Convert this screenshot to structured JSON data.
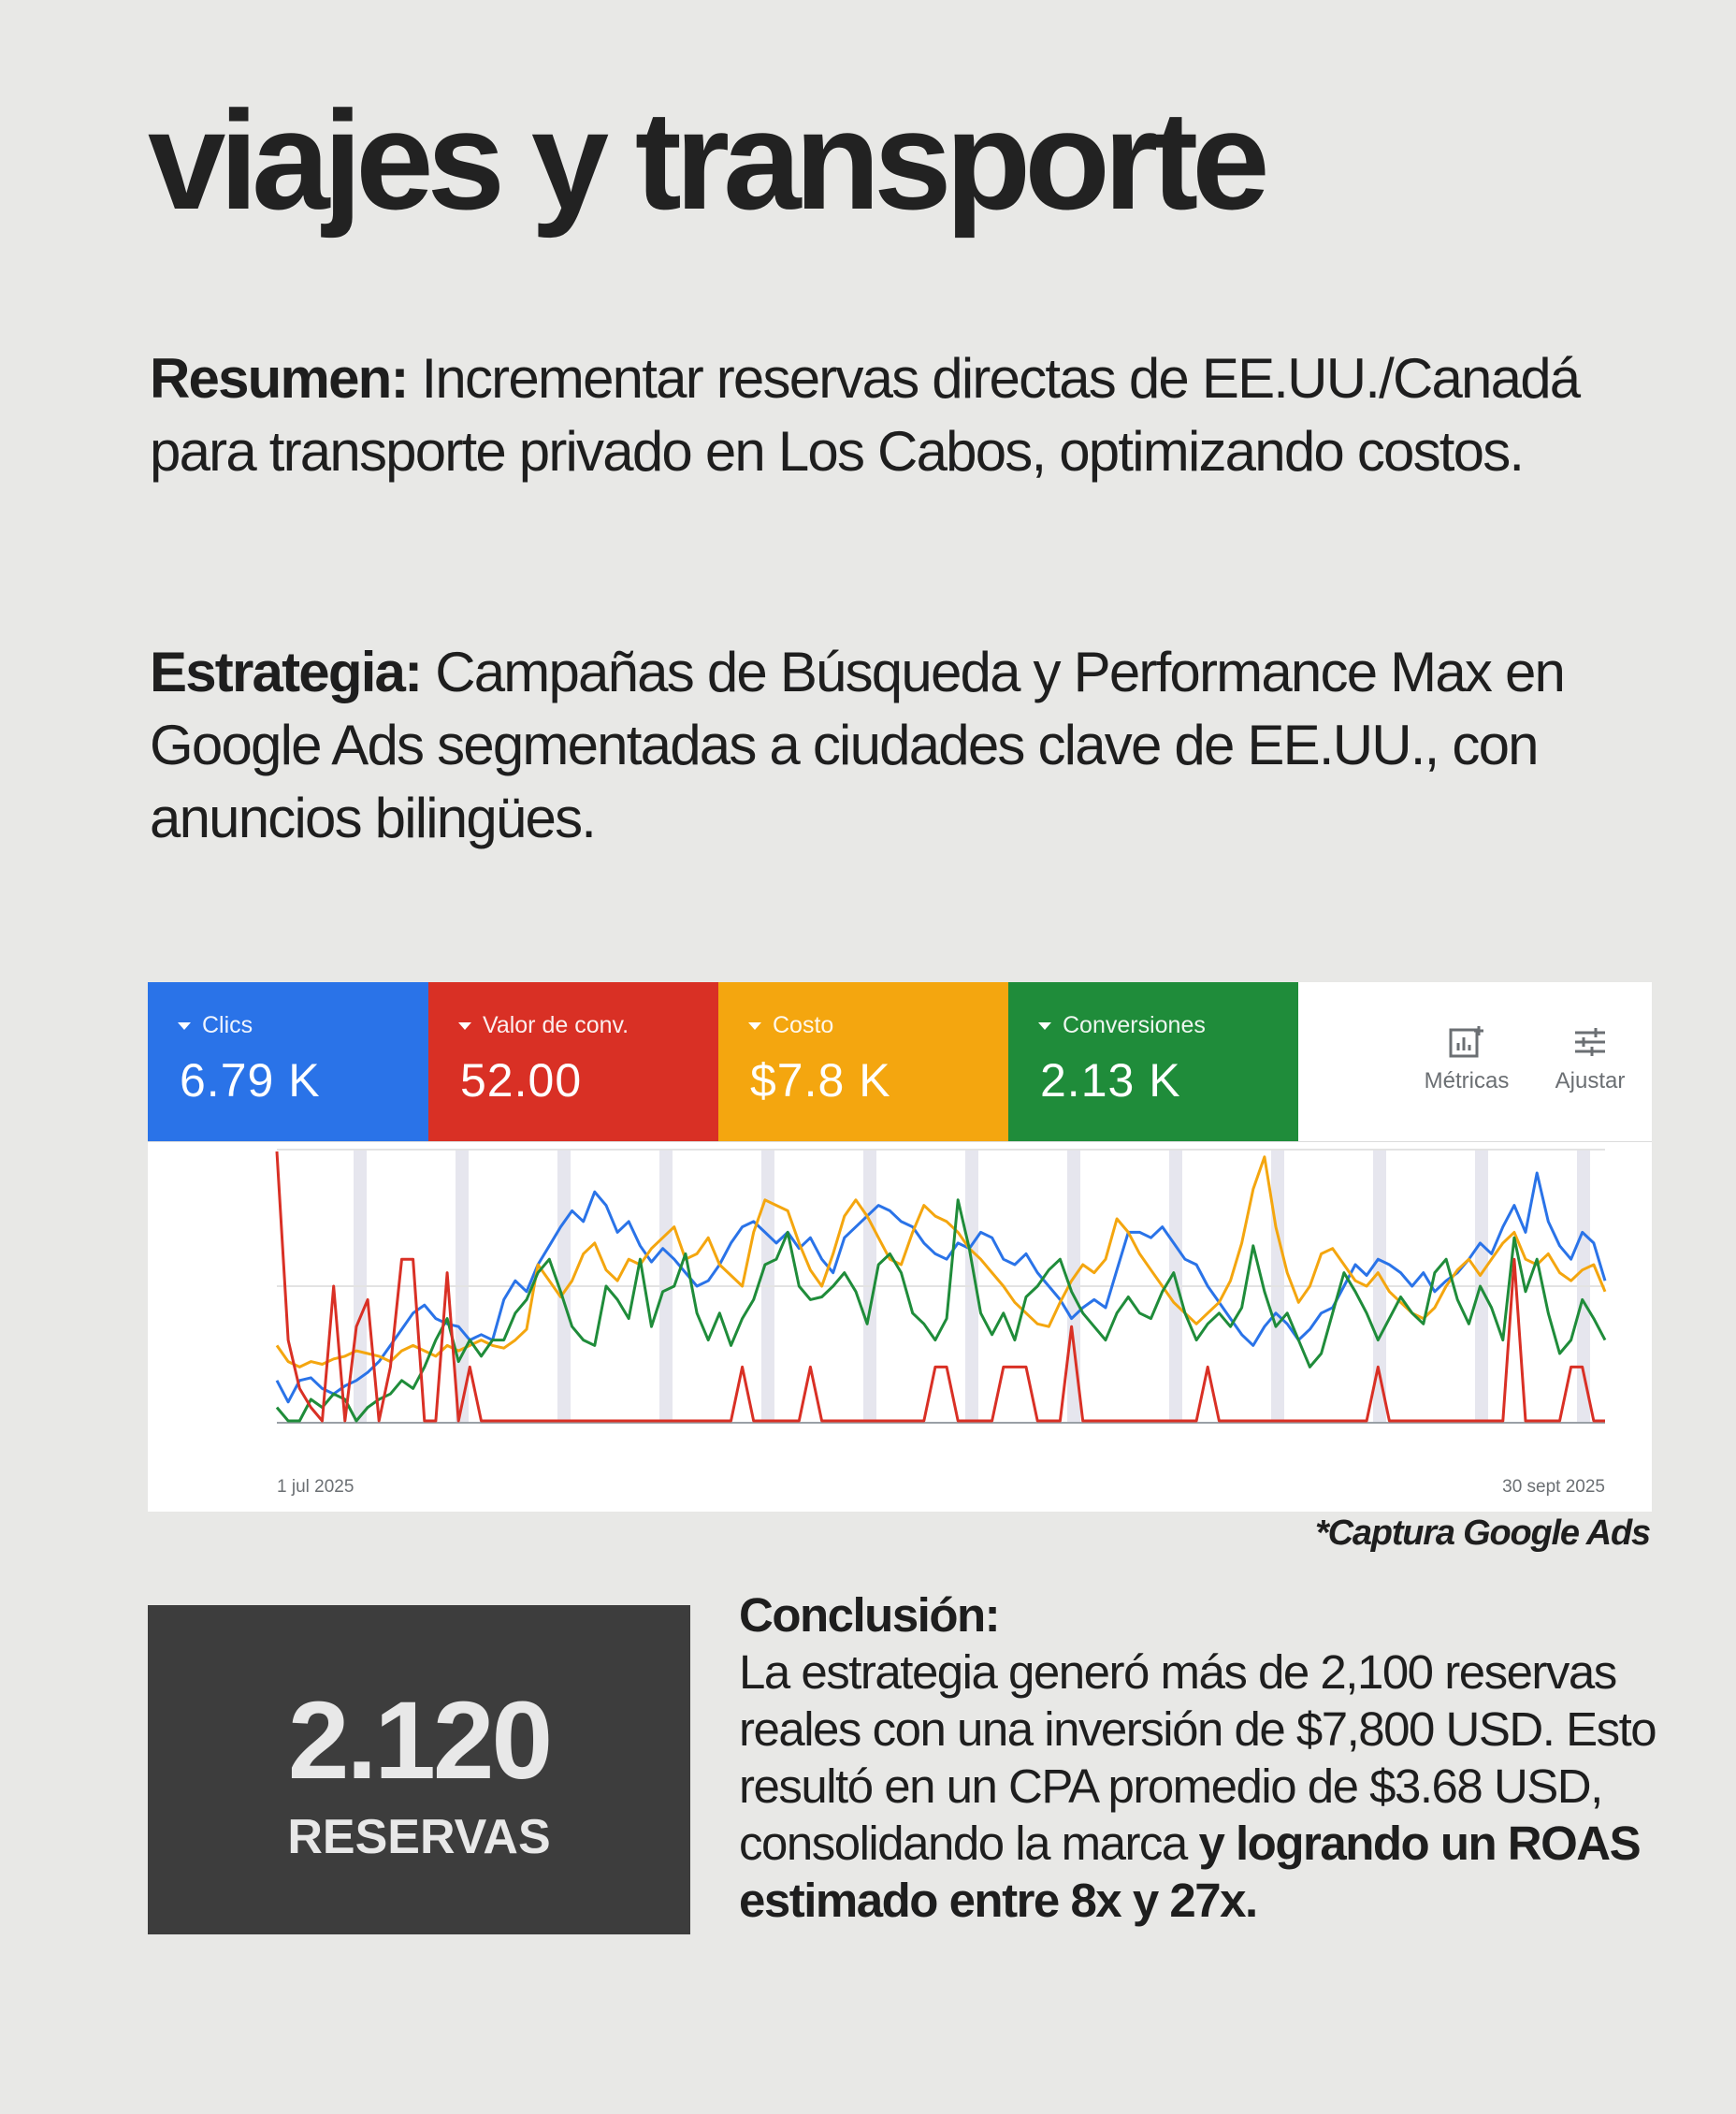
{
  "title": "viajes y transporte",
  "resumen": {
    "label": "Resumen:",
    "text": "Incrementar reservas directas de EE.UU./Canadá para transporte privado en Los Cabos, optimizando costos."
  },
  "estrategia": {
    "label": "Estrategia:",
    "text": "Campañas de Búsqueda y Performance Max en Google Ads segmentadas a ciudades clave de EE.UU., con anuncios bilingües."
  },
  "ads_panel": {
    "metrics": [
      {
        "name": "Clics",
        "value": "6.79 K",
        "color": "#2a73e8"
      },
      {
        "name": "Valor de conv.",
        "value": "52.00",
        "color": "#d93025"
      },
      {
        "name": "Costo",
        "value": "$7.8 K",
        "color": "#f4a60f"
      },
      {
        "name": "Conversiones",
        "value": "2.13 K",
        "color": "#1f8c3a"
      }
    ],
    "tools": [
      {
        "label": "Métricas",
        "icon": "metrics-add-icon"
      },
      {
        "label": "Ajustar",
        "icon": "tune-sliders-icon"
      }
    ]
  },
  "chart_data": {
    "type": "line",
    "x_start_label": "1 jul 2025",
    "x_end_label": "30 sept 2025",
    "grid": "horizontal",
    "series": [
      {
        "name": "Clics",
        "color": "#2a73e8",
        "values": [
          0.15,
          0.07,
          0.15,
          0.16,
          0.12,
          0.1,
          0.13,
          0.15,
          0.18,
          0.22,
          0.28,
          0.34,
          0.4,
          0.43,
          0.38,
          0.36,
          0.35,
          0.3,
          0.32,
          0.3,
          0.45,
          0.52,
          0.48,
          0.58,
          0.65,
          0.72,
          0.78,
          0.74,
          0.85,
          0.8,
          0.7,
          0.74,
          0.65,
          0.59,
          0.64,
          0.6,
          0.55,
          0.5,
          0.52,
          0.58,
          0.66,
          0.72,
          0.74,
          0.7,
          0.66,
          0.7,
          0.64,
          0.68,
          0.6,
          0.55,
          0.68,
          0.72,
          0.76,
          0.8,
          0.78,
          0.74,
          0.72,
          0.66,
          0.62,
          0.6,
          0.66,
          0.64,
          0.7,
          0.68,
          0.6,
          0.58,
          0.62,
          0.55,
          0.5,
          0.45,
          0.38,
          0.42,
          0.45,
          0.42,
          0.56,
          0.7,
          0.7,
          0.68,
          0.72,
          0.66,
          0.6,
          0.58,
          0.5,
          0.44,
          0.38,
          0.32,
          0.28,
          0.35,
          0.4,
          0.36,
          0.3,
          0.34,
          0.4,
          0.42,
          0.5,
          0.58,
          0.54,
          0.6,
          0.58,
          0.55,
          0.5,
          0.55,
          0.48,
          0.52,
          0.55,
          0.6,
          0.66,
          0.62,
          0.72,
          0.8,
          0.7,
          0.92,
          0.74,
          0.65,
          0.6,
          0.7,
          0.66,
          0.52
        ]
      },
      {
        "name": "Valor de conv.",
        "color": "#d93025",
        "values": [
          1.0,
          0.3,
          0.12,
          0.05,
          0.0,
          0.5,
          0.0,
          0.35,
          0.45,
          0.0,
          0.2,
          0.6,
          0.6,
          0.0,
          0.0,
          0.55,
          0.0,
          0.2,
          0.0,
          0.0,
          0.0,
          0.0,
          0.0,
          0.0,
          0.0,
          0.0,
          0.0,
          0.0,
          0.0,
          0.0,
          0.0,
          0.0,
          0.0,
          0.0,
          0.0,
          0.0,
          0.0,
          0.0,
          0.0,
          0.0,
          0.0,
          0.2,
          0.0,
          0.0,
          0.0,
          0.0,
          0.0,
          0.2,
          0.0,
          0.0,
          0.0,
          0.0,
          0.0,
          0.0,
          0.0,
          0.0,
          0.0,
          0.0,
          0.2,
          0.2,
          0.0,
          0.0,
          0.0,
          0.0,
          0.2,
          0.2,
          0.2,
          0.0,
          0.0,
          0.0,
          0.35,
          0.0,
          0.0,
          0.0,
          0.0,
          0.0,
          0.0,
          0.0,
          0.0,
          0.0,
          0.0,
          0.0,
          0.2,
          0.0,
          0.0,
          0.0,
          0.0,
          0.0,
          0.0,
          0.0,
          0.0,
          0.0,
          0.0,
          0.0,
          0.0,
          0.0,
          0.0,
          0.2,
          0.0,
          0.0,
          0.0,
          0.0,
          0.0,
          0.0,
          0.0,
          0.0,
          0.0,
          0.0,
          0.0,
          0.6,
          0.0,
          0.0,
          0.0,
          0.0,
          0.2,
          0.2,
          0.0,
          0.0
        ]
      },
      {
        "name": "Costo",
        "color": "#f4a60f",
        "values": [
          0.28,
          0.22,
          0.2,
          0.22,
          0.21,
          0.23,
          0.24,
          0.26,
          0.25,
          0.24,
          0.22,
          0.26,
          0.28,
          0.26,
          0.24,
          0.28,
          0.26,
          0.28,
          0.3,
          0.28,
          0.27,
          0.3,
          0.34,
          0.58,
          0.52,
          0.46,
          0.52,
          0.62,
          0.66,
          0.56,
          0.52,
          0.6,
          0.58,
          0.64,
          0.68,
          0.72,
          0.6,
          0.62,
          0.68,
          0.58,
          0.54,
          0.5,
          0.7,
          0.82,
          0.8,
          0.78,
          0.66,
          0.56,
          0.5,
          0.62,
          0.76,
          0.82,
          0.76,
          0.68,
          0.6,
          0.58,
          0.7,
          0.8,
          0.76,
          0.74,
          0.7,
          0.64,
          0.6,
          0.55,
          0.5,
          0.44,
          0.4,
          0.36,
          0.35,
          0.44,
          0.52,
          0.58,
          0.55,
          0.6,
          0.75,
          0.7,
          0.62,
          0.56,
          0.5,
          0.44,
          0.4,
          0.36,
          0.4,
          0.44,
          0.52,
          0.66,
          0.86,
          0.98,
          0.72,
          0.55,
          0.44,
          0.5,
          0.62,
          0.64,
          0.58,
          0.52,
          0.5,
          0.55,
          0.48,
          0.44,
          0.4,
          0.38,
          0.42,
          0.5,
          0.56,
          0.6,
          0.54,
          0.6,
          0.66,
          0.7,
          0.6,
          0.58,
          0.62,
          0.55,
          0.52,
          0.56,
          0.58,
          0.48
        ]
      },
      {
        "name": "Conversiones",
        "color": "#1f8c3a",
        "values": [
          0.05,
          0.0,
          0.0,
          0.08,
          0.05,
          0.1,
          0.08,
          0.0,
          0.05,
          0.08,
          0.1,
          0.15,
          0.12,
          0.2,
          0.3,
          0.38,
          0.22,
          0.3,
          0.24,
          0.3,
          0.3,
          0.4,
          0.45,
          0.55,
          0.6,
          0.48,
          0.35,
          0.3,
          0.28,
          0.5,
          0.45,
          0.38,
          0.6,
          0.35,
          0.48,
          0.5,
          0.62,
          0.4,
          0.3,
          0.4,
          0.28,
          0.38,
          0.45,
          0.58,
          0.6,
          0.7,
          0.5,
          0.45,
          0.46,
          0.5,
          0.55,
          0.48,
          0.36,
          0.58,
          0.62,
          0.55,
          0.4,
          0.36,
          0.3,
          0.38,
          0.82,
          0.64,
          0.4,
          0.32,
          0.4,
          0.3,
          0.46,
          0.5,
          0.56,
          0.6,
          0.48,
          0.4,
          0.35,
          0.3,
          0.4,
          0.46,
          0.4,
          0.38,
          0.48,
          0.55,
          0.4,
          0.3,
          0.36,
          0.4,
          0.35,
          0.42,
          0.65,
          0.48,
          0.35,
          0.4,
          0.3,
          0.2,
          0.25,
          0.4,
          0.55,
          0.48,
          0.4,
          0.3,
          0.38,
          0.46,
          0.4,
          0.36,
          0.55,
          0.6,
          0.45,
          0.36,
          0.5,
          0.42,
          0.3,
          0.68,
          0.48,
          0.6,
          0.4,
          0.25,
          0.3,
          0.45,
          0.38,
          0.3
        ]
      }
    ]
  },
  "footnote": "*Captura Google Ads",
  "stat": {
    "number": "2.120",
    "label": "RESERVAS"
  },
  "conclusion": {
    "label": "Conclusión:",
    "text": "La estrategia generó más de 2,100 reservas reales con una inversión de $7,800 USD. Esto resultó en un CPA promedio de $3.68 USD, consolidando la marca ",
    "bold_text": "y logrando un ROAS estimado entre 8x y 27x."
  }
}
